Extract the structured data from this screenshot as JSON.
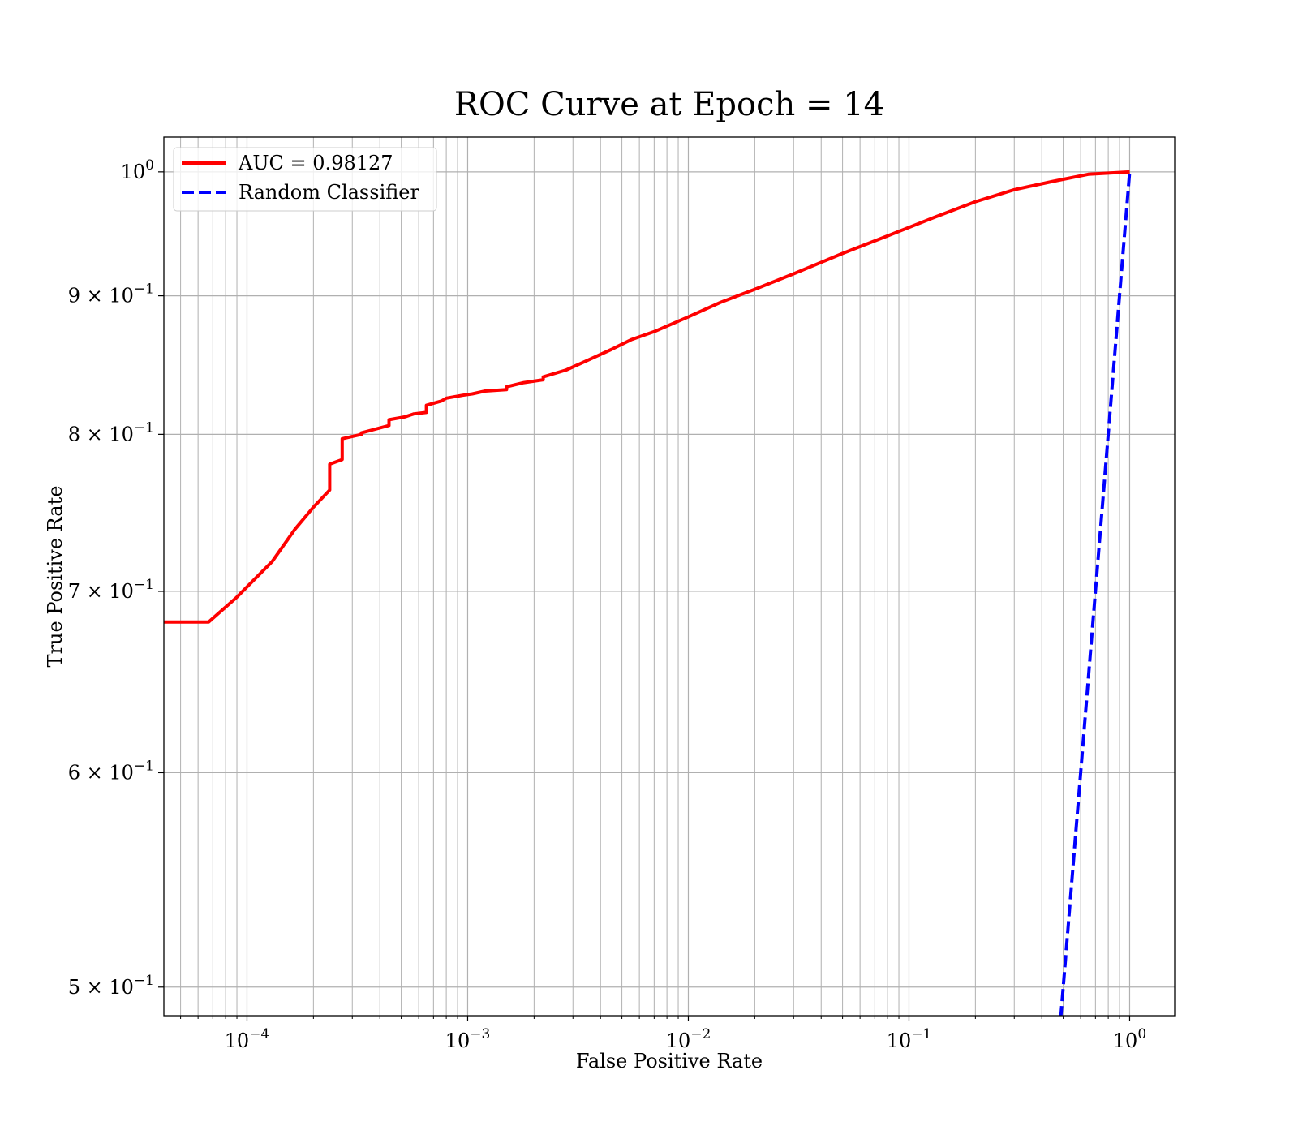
{
  "chart_data": {
    "type": "line",
    "title": "ROC Curve at Epoch = 14",
    "xlabel": "False Positive Rate",
    "ylabel": "True Positive Rate",
    "xscale": "log",
    "yscale": "log",
    "xlim": [
      4.2e-05,
      1.6
    ],
    "ylim": [
      0.488,
      1.03
    ],
    "grid": "both",
    "legend_position": "upper left",
    "x_ticks": [
      {
        "value": 0.0001,
        "base": "10",
        "exp": "−4"
      },
      {
        "value": 0.001,
        "base": "10",
        "exp": "−3"
      },
      {
        "value": 0.01,
        "base": "10",
        "exp": "−2"
      },
      {
        "value": 0.1,
        "base": "10",
        "exp": "−1"
      },
      {
        "value": 1,
        "base": "10",
        "exp": "0"
      }
    ],
    "y_ticks": [
      {
        "value": 1.0,
        "base": "10",
        "exp": "0",
        "coef": ""
      },
      {
        "value": 0.9,
        "base": "10",
        "exp": "−1",
        "coef": "9 × "
      },
      {
        "value": 0.8,
        "base": "10",
        "exp": "−1",
        "coef": "8 × "
      },
      {
        "value": 0.7,
        "base": "10",
        "exp": "−1",
        "coef": "7 × "
      },
      {
        "value": 0.6,
        "base": "10",
        "exp": "−1",
        "coef": "6 × "
      },
      {
        "value": 0.5,
        "base": "10",
        "exp": "−1",
        "coef": "5 × "
      }
    ],
    "series": [
      {
        "name": "AUC = 0.98127",
        "color": "#ff0000",
        "style": "solid",
        "x": [
          4.2e-05,
          6.7e-05,
          8.9e-05,
          0.00013,
          0.000165,
          0.0002,
          0.000237,
          0.000237,
          0.00027,
          0.00027,
          0.00033,
          0.00033,
          0.00044,
          0.00044,
          0.00052,
          0.00057,
          0.00065,
          0.00065,
          0.00076,
          0.0008,
          0.00095,
          0.00105,
          0.0012,
          0.0015,
          0.0015,
          0.0018,
          0.0022,
          0.0022,
          0.0028,
          0.0035,
          0.0045,
          0.0055,
          0.007,
          0.01,
          0.014,
          0.02,
          0.03,
          0.05,
          0.08,
          0.13,
          0.2,
          0.3,
          0.45,
          0.65,
          1.0
        ],
        "y": [
          0.682,
          0.682,
          0.696,
          0.718,
          0.738,
          0.752,
          0.763,
          0.78,
          0.783,
          0.797,
          0.8,
          0.801,
          0.806,
          0.81,
          0.812,
          0.814,
          0.815,
          0.82,
          0.823,
          0.825,
          0.827,
          0.828,
          0.83,
          0.831,
          0.833,
          0.836,
          0.838,
          0.84,
          0.845,
          0.852,
          0.86,
          0.867,
          0.873,
          0.884,
          0.895,
          0.905,
          0.917,
          0.933,
          0.947,
          0.962,
          0.975,
          0.985,
          0.992,
          0.998,
          1.0
        ]
      },
      {
        "name": "Random Classifier",
        "color": "#0000ff",
        "style": "dashed",
        "x": [
          0.48,
          0.6,
          0.7,
          0.8,
          0.9,
          1.0
        ],
        "y": [
          0.48,
          0.6,
          0.7,
          0.8,
          0.9,
          1.0
        ]
      }
    ]
  }
}
